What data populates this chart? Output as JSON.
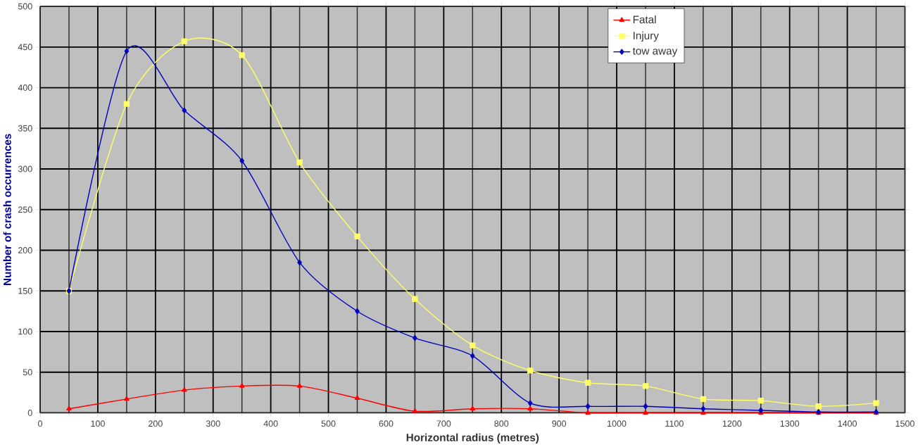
{
  "chart_data": {
    "type": "line",
    "xlabel": "Horizontal radius (metres)",
    "ylabel": "Number of crash occurrences",
    "x": [
      50,
      150,
      250,
      350,
      450,
      550,
      650,
      750,
      850,
      950,
      1050,
      1150,
      1250,
      1350,
      1450
    ],
    "series": [
      {
        "name": "Fatal",
        "color": "#ff0000",
        "marker": "triangle",
        "values": [
          5,
          17,
          28,
          33,
          33,
          18,
          2,
          5,
          5,
          0,
          0,
          0,
          0,
          0,
          0
        ]
      },
      {
        "name": "Injury",
        "color": "#ffff66",
        "marker": "square",
        "values": [
          150,
          380,
          457,
          440,
          308,
          217,
          140,
          83,
          52,
          37,
          33,
          17,
          15,
          8,
          12
        ]
      },
      {
        "name": "tow away",
        "color": "#0000c0",
        "marker": "diamond",
        "values": [
          150,
          445,
          372,
          310,
          185,
          125,
          92,
          70,
          12,
          8,
          8,
          5,
          3,
          1,
          1
        ]
      }
    ],
    "xlim": [
      0,
      1500
    ],
    "xticks": [
      0,
      100,
      200,
      300,
      400,
      500,
      600,
      700,
      800,
      900,
      1000,
      1100,
      1200,
      1300,
      1400,
      1500
    ],
    "ylim": [
      0,
      500
    ],
    "yticks": [
      0,
      50,
      100,
      150,
      200,
      250,
      300,
      350,
      400,
      450,
      500
    ],
    "grid": true,
    "legend": "top right"
  }
}
